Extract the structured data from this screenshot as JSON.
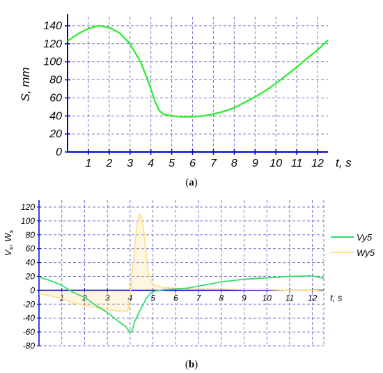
{
  "chart_data": [
    {
      "type": "line",
      "caption_letter": "a",
      "xlabel": "t, s",
      "ylabel": "S, mm",
      "xlim": [
        0,
        12.5
      ],
      "ylim": [
        0,
        150
      ],
      "x_ticks": [
        1,
        2,
        3,
        4,
        5,
        6,
        7,
        8,
        9,
        10,
        11,
        12
      ],
      "y_ticks": [
        0,
        20,
        40,
        60,
        80,
        100,
        120,
        140
      ],
      "grid": true,
      "colors": {
        "line": "#33ee33",
        "axis": "#0000cc",
        "grid": "#7777cc"
      },
      "series": [
        {
          "x": [
            0,
            0.5,
            1,
            1.5,
            2,
            2.5,
            3,
            3.5,
            3.8,
            4,
            4.2,
            4.4,
            4.6,
            5,
            5.5,
            6,
            6.5,
            7,
            7.5,
            8,
            8.5,
            9,
            9.5,
            10,
            10.5,
            11,
            11.5,
            12,
            12.5
          ],
          "y": [
            123,
            131,
            137,
            140,
            138,
            132,
            120,
            100,
            83,
            70,
            56,
            46,
            42,
            40,
            39,
            39,
            40,
            42,
            45,
            49,
            55,
            61,
            68,
            76,
            85,
            94,
            104,
            113,
            124
          ]
        }
      ]
    },
    {
      "type": "line",
      "caption_letter": "b",
      "xlabel": "t, s",
      "ylabel_main": "V",
      "ylabel_sub1": "s",
      "ylabel_sep": ", ",
      "ylabel_main2": "W",
      "ylabel_sub2": "s",
      "xlim": [
        0,
        12.5
      ],
      "ylim": [
        -80,
        130
      ],
      "x_ticks": [
        1,
        2,
        3,
        4,
        5,
        6,
        7,
        8,
        9,
        10,
        11,
        12
      ],
      "y_ticks": [
        -80,
        -60,
        -40,
        -20,
        0,
        20,
        40,
        60,
        80,
        100,
        120
      ],
      "grid": true,
      "legend_position": "right",
      "colors": {
        "axis": "#0000cc",
        "grid": "#7777cc"
      },
      "series": [
        {
          "name": "Vy5",
          "color": "#33dd66",
          "x": [
            0,
            0.5,
            1,
            1.5,
            2,
            2.5,
            3,
            3.5,
            3.8,
            4,
            4.1,
            4.2,
            4.3,
            4.5,
            4.7,
            4.9,
            5.1,
            5.5,
            6,
            6.5,
            7,
            8,
            9,
            10,
            11,
            12,
            12.5
          ],
          "y": [
            19,
            14,
            7,
            -3,
            -10,
            -22,
            -32,
            -45,
            -52,
            -61,
            -57,
            -45,
            -38,
            -25,
            -12,
            -4,
            -1,
            1,
            2,
            3,
            6,
            12,
            16,
            18,
            20,
            21,
            17
          ]
        },
        {
          "name": "Wy5",
          "color": "#ffdd88",
          "x": [
            0,
            0.5,
            1,
            1.5,
            2,
            2.5,
            3,
            3.5,
            3.9,
            4,
            4.1,
            4.2,
            4.3,
            4.4,
            4.5,
            4.6,
            4.7,
            4.8,
            5,
            5.5,
            6,
            6.5,
            7,
            8,
            9,
            10,
            11,
            12,
            12.5
          ],
          "y": [
            -5,
            -8,
            -12,
            -18,
            -22,
            -25,
            -28,
            -30,
            -30,
            -5,
            30,
            60,
            95,
            110,
            105,
            85,
            55,
            25,
            8,
            4,
            3,
            2,
            2,
            2,
            1,
            1,
            0,
            0,
            -1
          ]
        }
      ]
    }
  ]
}
